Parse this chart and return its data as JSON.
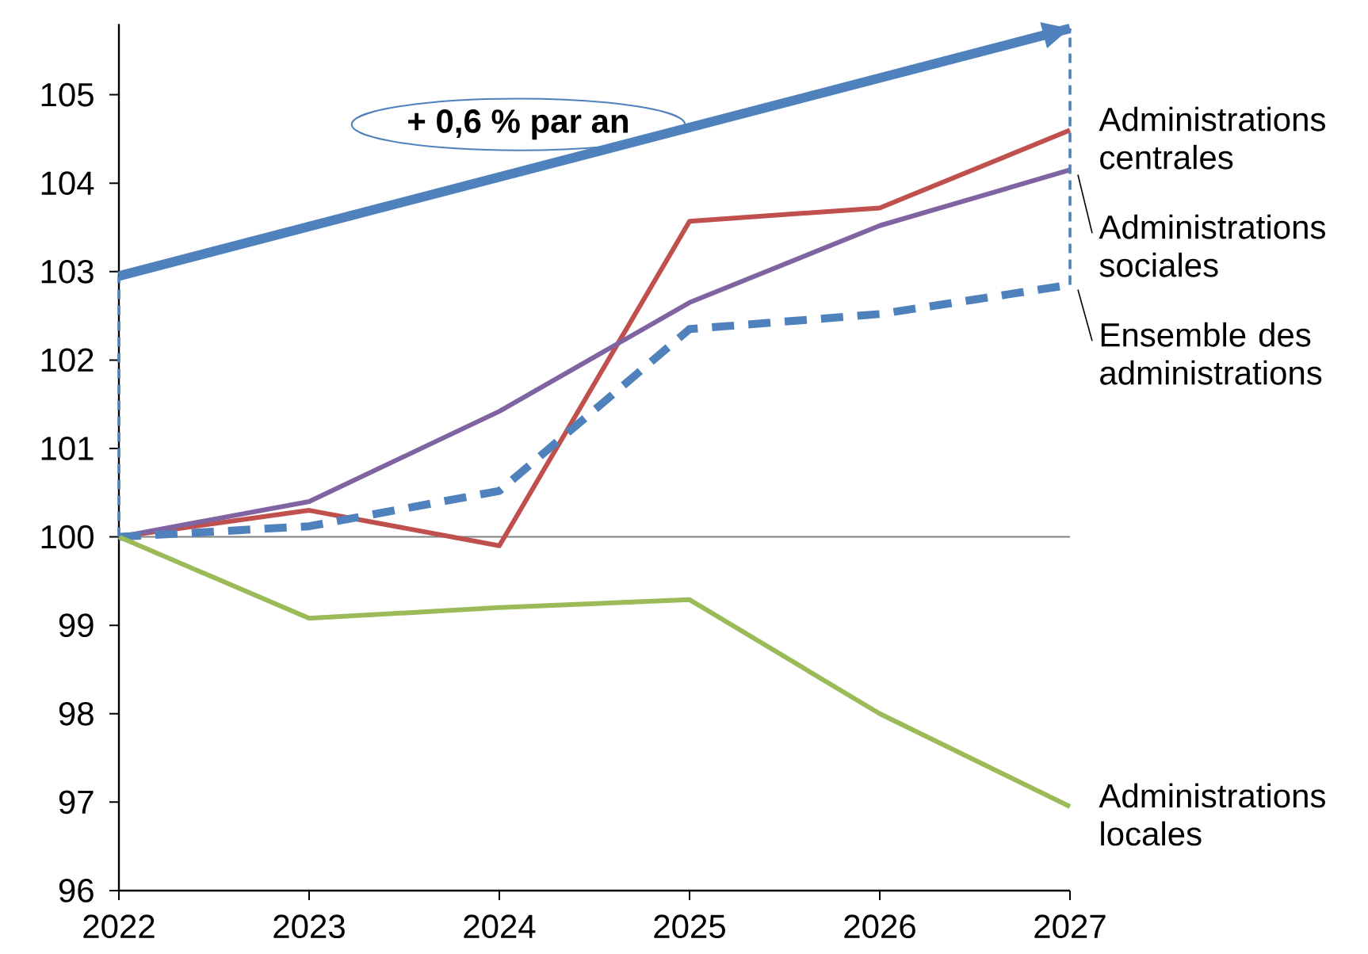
{
  "chart_data": {
    "type": "line",
    "x": [
      2022,
      2023,
      2024,
      2025,
      2026,
      2027
    ],
    "xlim": [
      2022,
      2027
    ],
    "xticks": [
      2022,
      2023,
      2024,
      2025,
      2026,
      2027
    ],
    "ylim": [
      96,
      105.8
    ],
    "yticks": [
      96,
      97,
      98,
      99,
      100,
      101,
      102,
      103,
      104,
      105
    ],
    "series": [
      {
        "name": "Administrations centrales",
        "color": "#c0504d",
        "values": [
          100,
          100.3,
          99.9,
          103.57,
          103.72,
          104.6
        ]
      },
      {
        "name": "Administrations sociales",
        "color": "#8064a2",
        "values": [
          100,
          100.4,
          101.42,
          102.65,
          103.52,
          104.15
        ]
      },
      {
        "name": "Ensemble des administrations",
        "color": "#4f81bd",
        "line_style": "dashed",
        "values": [
          100,
          100.12,
          100.52,
          102.35,
          102.52,
          102.85
        ]
      },
      {
        "name": "Administrations locales",
        "color": "#9bbb59",
        "values": [
          100,
          99.08,
          99.2,
          99.29,
          98.0,
          96.95
        ]
      },
      {
        "type": "line",
        "color": "#4f81bd",
        "x": [
          2022,
          2027
        ],
        "values": [
          102.95,
          105.75
        ]
      }
    ],
    "ref_lines": [
      {
        "axis": "y",
        "value": 100,
        "color": "#808080"
      }
    ],
    "annotations": [
      "+ 0,6 % par an"
    ],
    "legend": false
  }
}
